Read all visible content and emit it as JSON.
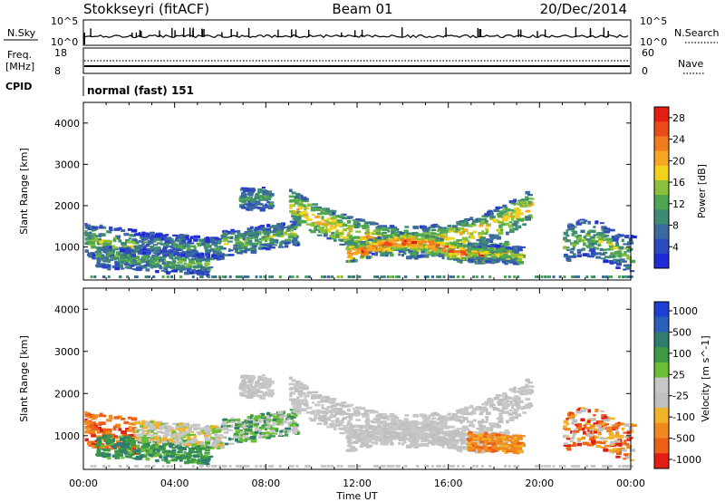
{
  "header": {
    "station": "Stokkseyri (fitACF)",
    "beam": "Beam 01",
    "date": "20/Dec/2014"
  },
  "noise_panel": {
    "left_label": "N.Sky",
    "left_ticks": [
      "10^5",
      "10^0"
    ],
    "right_ticks": [
      "10^5",
      "10^0"
    ],
    "right_label": "N.Search"
  },
  "freq_panel": {
    "label_line1": "Freq.",
    "label_line2": "[MHz]",
    "left_ticks": [
      "18",
      "8"
    ],
    "right_ticks": [
      "60",
      "0"
    ],
    "right_label": "Nave"
  },
  "cpid_panel": {
    "label": "CPID",
    "value": "normal (fast) 151"
  },
  "colors": {
    "power_scale": [
      "#1f2bd6",
      "#2f49c0",
      "#3c6a9e",
      "#3f8a74",
      "#4ca652",
      "#8bc13a",
      "#f3d21a",
      "#f5a623",
      "#f07c1d",
      "#ea4a17",
      "#e21d12"
    ],
    "velocity_scale": [
      "#1f3fd3",
      "#2b5fb8",
      "#2e7d6e",
      "#3d9a44",
      "#6bbf35",
      "#c7c7c7",
      "#c0c0c0",
      "#f2b227",
      "#f08a1e",
      "#ee5f17",
      "#e21d12"
    ]
  },
  "chart_data": [
    {
      "type": "heatmap",
      "name": "power",
      "ylabel": "Slant Range [km]",
      "yticks": [
        "1000",
        "2000",
        "3000",
        "4000"
      ],
      "ylim": [
        200,
        4500
      ],
      "x_ticks": [
        "00:00",
        "04:00",
        "08:00",
        "12:00",
        "16:00",
        "20:00",
        "00:00"
      ],
      "xlim_hours": [
        0,
        24
      ],
      "colorbar": {
        "label": "Power [dB]",
        "ticks": [
          "28",
          "24",
          "20",
          "16",
          "12",
          "8",
          "4"
        ],
        "range": [
          0,
          30
        ]
      }
    },
    {
      "type": "heatmap",
      "name": "velocity",
      "ylabel": "Slant Range [km]",
      "yticks": [
        "1000",
        "2000",
        "3000",
        "4000"
      ],
      "ylim": [
        200,
        4500
      ],
      "xlabel": "Time UT",
      "x_ticks": [
        "00:00",
        "04:00",
        "08:00",
        "12:00",
        "16:00",
        "20:00",
        "00:00"
      ],
      "xlim_hours": [
        0,
        24
      ],
      "colorbar": {
        "label": "Velocity [m s^-1]",
        "ticks": [
          "1000",
          "500",
          "100",
          "25",
          "-25",
          "-100",
          "-500",
          "-1000"
        ]
      }
    }
  ]
}
